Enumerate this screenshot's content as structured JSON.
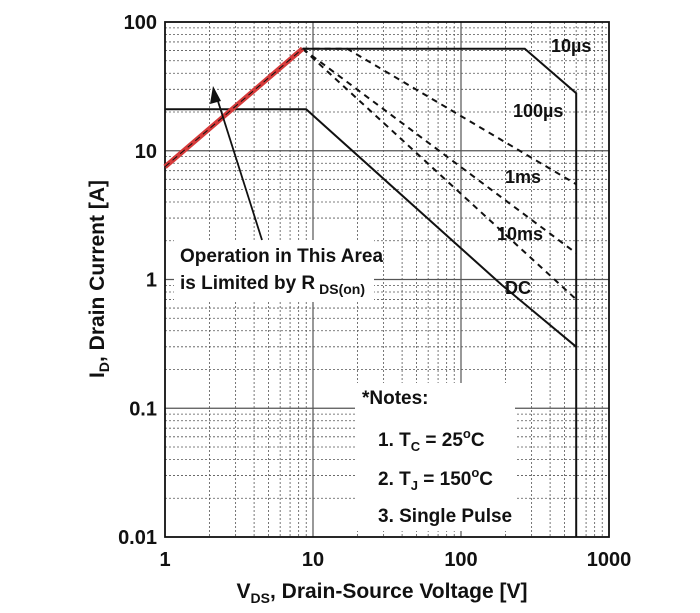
{
  "chart_data": {
    "type": "line",
    "title": "",
    "xlabel": "V_DS, Drain-Source Voltage [V]",
    "xlabel_parts": {
      "main": "V",
      "sub": "DS",
      "rest": ", Drain-Source Voltage [V]"
    },
    "ylabel": "I_D, Drain Current [A]",
    "ylabel_parts": {
      "main": "I",
      "sub": "D",
      "rest": ", Drain Current [A]"
    },
    "xscale": "log",
    "yscale": "log",
    "xlim": [
      1,
      1000
    ],
    "ylim": [
      0.01,
      100
    ],
    "grid": true,
    "x_ticks": [
      1,
      10,
      100,
      1000
    ],
    "x_tick_labels": [
      "1",
      "10",
      "100",
      "1000"
    ],
    "y_ticks": [
      0.01,
      0.1,
      1,
      10,
      100
    ],
    "y_tick_labels": [
      "0.01",
      "0.1",
      "1",
      "10",
      "100"
    ],
    "series": [
      {
        "name": "10µs",
        "label": "10µs",
        "style": "solid",
        "x": [
          8.5,
          270,
          600,
          600
        ],
        "y": [
          62,
          62,
          28,
          0.01
        ]
      },
      {
        "name": "100µs",
        "label": "100µs",
        "style": "dashed",
        "x": [
          8.5,
          17,
          600
        ],
        "y": [
          62,
          62,
          5.5
        ]
      },
      {
        "name": "1ms",
        "label": "1ms",
        "style": "dashed",
        "x": [
          8.5,
          600
        ],
        "y": [
          62,
          1.6
        ]
      },
      {
        "name": "10ms",
        "label": "10ms",
        "style": "dashed",
        "x": [
          8.5,
          600
        ],
        "y": [
          62,
          0.7
        ]
      },
      {
        "name": "DC",
        "label": "DC",
        "style": "solid",
        "x": [
          1,
          9,
          190
        ],
        "y": [
          21,
          21,
          0.9
        ]
      },
      {
        "name": "DC-tail",
        "style": "solid",
        "x": [
          190,
          600
        ],
        "y": [
          0.9,
          0.3
        ]
      },
      {
        "name": "R_DS(on) limit",
        "style": "red",
        "x": [
          1,
          8.5
        ],
        "y": [
          7.5,
          62
        ]
      }
    ],
    "annotations": {
      "rds_line1": "Operation in This Area",
      "rds_line2_main": "is Limited by R",
      "rds_line2_sub": "DS(on)",
      "notes_title": "*Notes:",
      "note1_main": "1. T",
      "note1_sub": "C",
      "note1_mid": " = 25",
      "note1_sup": "o",
      "note1_end": "C",
      "note2_main": "2. T",
      "note2_sub": "J",
      "note2_mid": " = 150",
      "note2_sup": "o",
      "note2_end": "C",
      "note3": "3. Single Pulse"
    },
    "colors": {
      "curves": "#111111",
      "rds_limit": "#d63a3a",
      "grid": "#555555"
    }
  }
}
